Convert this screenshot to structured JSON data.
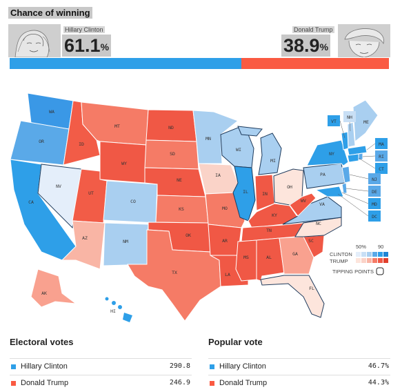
{
  "header": {
    "title": "Chance of winning"
  },
  "candidates": {
    "clinton": {
      "name": "Hillary Clinton",
      "chance": "61.1",
      "pct_sign": "%",
      "chance_value": 61.1,
      "color": "#2e9fe8"
    },
    "trump": {
      "name": "Donald Trump",
      "chance": "38.9",
      "pct_sign": "%",
      "chance_value": 38.9,
      "color": "#fa5a42"
    }
  },
  "legend": {
    "scale_low": "50%",
    "scale_high": "90",
    "clinton_label": "CLINTON",
    "trump_label": "TRUMP",
    "tipping_points_label": "TIPPING POINTS"
  },
  "map": {
    "states": {
      "WA": "WA",
      "OR": "OR",
      "CA": "CA",
      "NV": "NV",
      "ID": "ID",
      "MT": "MT",
      "WY": "WY",
      "UT": "UT",
      "AZ": "AZ",
      "CO": "CO",
      "NM": "NM",
      "ND": "ND",
      "SD": "SD",
      "NE": "NE",
      "KS": "KS",
      "OK": "OK",
      "TX": "TX",
      "MN": "MN",
      "IA": "IA",
      "MO": "MO",
      "AR": "AR",
      "LA": "LA",
      "WI": "WI",
      "IL": "IL",
      "MI": "MI",
      "IN": "IN",
      "OH": "OH",
      "KY": "KY",
      "TN": "TN",
      "MS": "MS",
      "AL": "AL",
      "GA": "GA",
      "FL": "FL",
      "SC": "SC",
      "NC": "NC",
      "VA": "VA",
      "WV": "WV",
      "PA": "PA",
      "NY": "NY",
      "ME": "ME",
      "VT": "VT",
      "NH": "NH",
      "MA": "MA",
      "RI": "RI",
      "CT": "CT",
      "NJ": "NJ",
      "DE": "DE",
      "MD": "MD",
      "DC": "DC",
      "AK": "AK",
      "HI": "HI"
    }
  },
  "electoral": {
    "title": "Electoral votes",
    "rows": [
      {
        "name": "Hillary Clinton",
        "value": "290.8",
        "color": "#2e9fe8"
      },
      {
        "name": "Donald Trump",
        "value": "246.9",
        "color": "#fa5a42"
      }
    ]
  },
  "popular": {
    "title": "Popular vote",
    "rows": [
      {
        "name": "Hillary Clinton",
        "value": "46.7%",
        "color": "#2e9fe8"
      },
      {
        "name": "Donald Trump",
        "value": "44.3%",
        "color": "#fa5a42"
      }
    ]
  }
}
